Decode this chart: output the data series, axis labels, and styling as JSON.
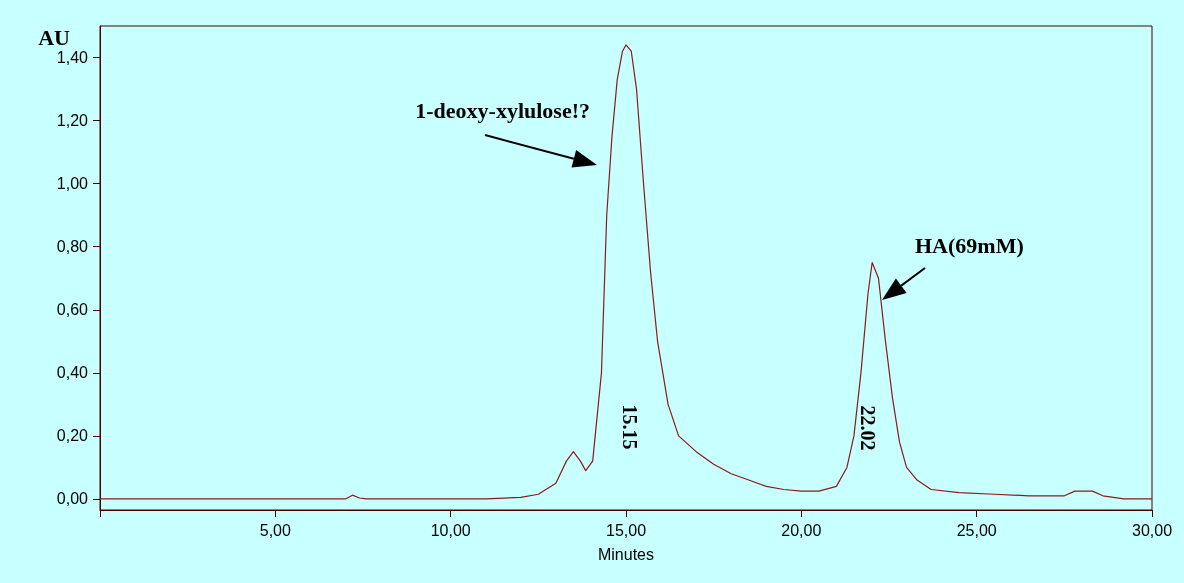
{
  "chart_data": {
    "type": "line",
    "xlabel": "Minutes",
    "ylabel": "AU",
    "x": [
      0,
      7.0,
      7.2,
      7.4,
      7.6,
      10.8,
      11.0,
      12.0,
      12.5,
      13.0,
      13.3,
      13.5,
      13.7,
      13.85,
      14.05,
      14.3,
      14.45,
      14.6,
      14.75,
      14.9,
      15.0,
      15.15,
      15.3,
      15.5,
      15.7,
      15.9,
      16.2,
      16.5,
      17.0,
      17.5,
      18.0,
      18.5,
      19.0,
      19.5,
      20.0,
      20.5,
      21.0,
      21.3,
      21.5,
      21.7,
      21.9,
      22.02,
      22.2,
      22.4,
      22.6,
      22.8,
      23.0,
      23.3,
      23.7,
      24.5,
      25.5,
      26.5,
      27.5,
      27.8,
      28.3,
      28.6,
      29.2,
      30.0
    ],
    "series": [
      {
        "color": "#8b1a1a",
        "values": [
          0,
          0,
          0.012,
          0.003,
          0,
          0,
          0,
          0.005,
          0.015,
          0.05,
          0.12,
          0.15,
          0.12,
          0.09,
          0.12,
          0.4,
          0.9,
          1.15,
          1.33,
          1.42,
          1.44,
          1.42,
          1.3,
          1.0,
          0.72,
          0.5,
          0.3,
          0.2,
          0.15,
          0.11,
          0.08,
          0.06,
          0.04,
          0.03,
          0.025,
          0.025,
          0.04,
          0.1,
          0.2,
          0.4,
          0.65,
          0.75,
          0.7,
          0.5,
          0.32,
          0.18,
          0.1,
          0.06,
          0.03,
          0.02,
          0.015,
          0.01,
          0.01,
          0.025,
          0.025,
          0.01,
          0,
          0
        ]
      }
    ],
    "xlim": [
      0,
      30
    ],
    "xticks": [
      {
        "value": 0,
        "label": null
      },
      {
        "value": 5,
        "label": "5,00"
      },
      {
        "value": 10,
        "label": "10,00"
      },
      {
        "value": 15,
        "label": "15,00"
      },
      {
        "value": 20,
        "label": "20,00"
      },
      {
        "value": 25,
        "label": "25,00"
      },
      {
        "value": 30,
        "label": "30,00"
      }
    ],
    "ylim": [
      -0.035,
      1.5
    ],
    "yticks": [
      {
        "value": 0,
        "label": "0,00"
      },
      {
        "value": 0.2,
        "label": "0,20"
      },
      {
        "value": 0.4,
        "label": "0,40"
      },
      {
        "value": 0.6,
        "label": "0,60"
      },
      {
        "value": 0.8,
        "label": "0,80"
      },
      {
        "value": 1.0,
        "label": "1,00"
      },
      {
        "value": 1.2,
        "label": "1,20"
      },
      {
        "value": 1.4,
        "label": "1,40"
      }
    ],
    "annotations": [
      "1-deoxy-xylulose!?",
      "HA(69mM)",
      "15.15",
      "22.02"
    ],
    "grid": false,
    "marker": "none",
    "line_style": "solid"
  }
}
